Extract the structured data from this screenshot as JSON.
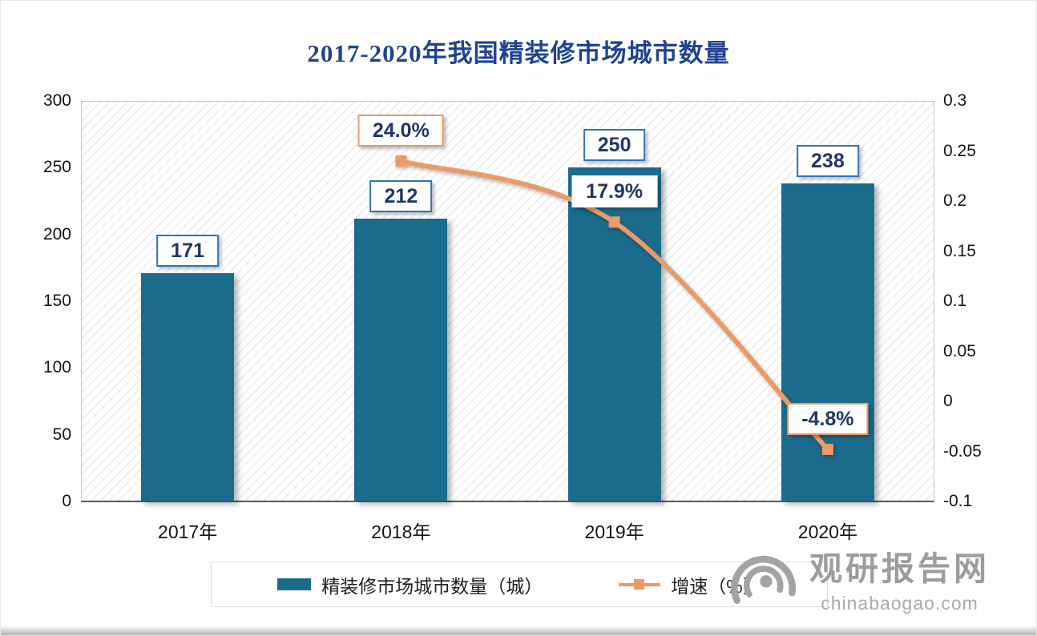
{
  "chart_data": {
    "type": "combo",
    "title": "2017-2020年我国精装修市场城市数量",
    "categories": [
      "2017年",
      "2018年",
      "2019年",
      "2020年"
    ],
    "series": [
      {
        "name": "精装修市场城市数量（城）",
        "type": "bar",
        "axis": "left",
        "values": [
          171,
          212,
          250,
          238
        ],
        "value_labels": [
          "171",
          "212",
          "250",
          "238"
        ]
      },
      {
        "name": "增速（%）",
        "type": "line",
        "axis": "right",
        "values": [
          null,
          0.24,
          0.179,
          -0.048
        ],
        "point_labels": [
          "",
          "24.0%",
          "17.9%",
          "-4.8%"
        ],
        "point_label_bordered": [
          false,
          true,
          false,
          true
        ]
      }
    ],
    "left_axis": {
      "min": 0,
      "max": 300,
      "ticks": [
        "300",
        "250",
        "200",
        "150",
        "100",
        "50",
        "0"
      ]
    },
    "right_axis": {
      "min": -0.1,
      "max": 0.3,
      "ticks": [
        "0.3",
        "0.25",
        "0.2",
        "0.15",
        "0.1",
        "0.05",
        "0",
        "-0.05",
        "-0.1"
      ]
    },
    "legend": {
      "position": "bottom",
      "items": [
        "精装修市场城市数量（城）",
        "增速（%）"
      ]
    },
    "grid": "hatched-background-no-gridlines",
    "colors": {
      "title": "#1f4391",
      "bar": "#1b6b8d",
      "line": "#eb9a68",
      "bar_label_border": "#2e74b5",
      "label_text": "#1f3864",
      "watermark": "#9d9d9d"
    },
    "watermark": {
      "name": "观研报告网",
      "url_text": "chinabaogao.com"
    }
  }
}
